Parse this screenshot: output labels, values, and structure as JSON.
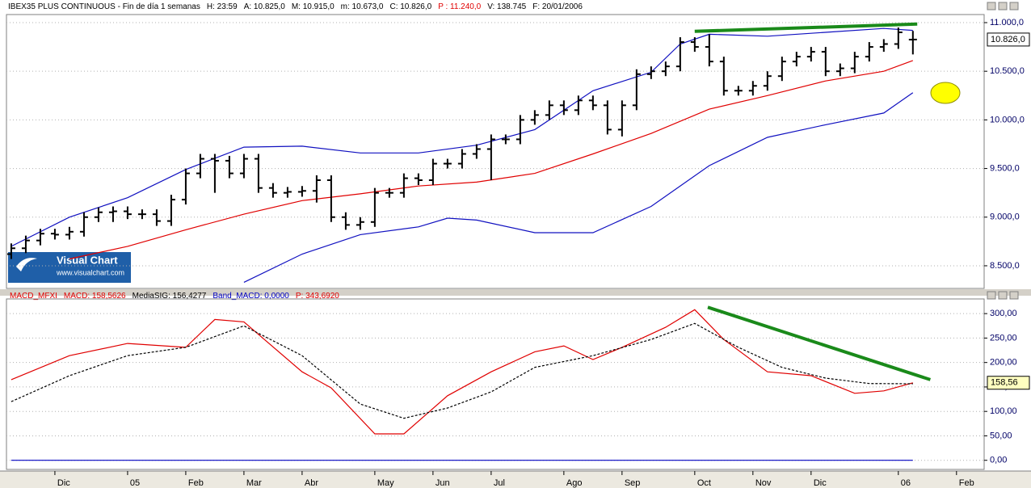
{
  "watermark": {
    "title": "Visual Chart",
    "url": "www.visualchart.com"
  },
  "chart_data": [
    {
      "type": "ohlc",
      "title": "IBEX35 PLUS CONTINUOUS - Fin de día 1 semanas",
      "info": [
        "H: 23:59",
        "A: 10.825,0",
        "M: 10.915,0",
        "m: 10.673,0",
        "C: 10.826,0",
        "P : 11.240,0",
        "V: 138.745",
        "F: 20/01/2006"
      ],
      "categories": [
        null,
        null,
        null,
        "Dic",
        null,
        null,
        null,
        null,
        "05",
        null,
        null,
        null,
        "Feb",
        null,
        null,
        null,
        "Mar",
        null,
        null,
        null,
        "Abr",
        null,
        null,
        null,
        null,
        "May",
        null,
        null,
        null,
        "Jun",
        null,
        null,
        null,
        "Jul",
        null,
        null,
        null,
        null,
        "Ago",
        null,
        null,
        null,
        "Sep",
        null,
        null,
        null,
        null,
        "Oct",
        null,
        null,
        null,
        "Nov",
        null,
        null,
        null,
        "Dic",
        null,
        null,
        null,
        null,
        null,
        "06",
        null,
        null,
        null,
        "Feb"
      ],
      "open": [
        8620,
        8680,
        8760,
        8830,
        8820,
        8850,
        9000,
        9050,
        9060,
        9030,
        9030,
        8960,
        9180,
        9450,
        9600,
        9580,
        9450,
        9600,
        9300,
        9250,
        9260,
        9270,
        9380,
        9000,
        8920,
        8950,
        9250,
        9250,
        9400,
        9380,
        9550,
        9550,
        9650,
        9700,
        9800,
        9800,
        10000,
        10050,
        10150,
        10100,
        10200,
        10150,
        9900,
        10150,
        10470,
        10500,
        10550,
        10800,
        10750,
        10600,
        10300,
        10300,
        10350,
        10450,
        10600,
        10650,
        10700,
        10500,
        10530,
        10650,
        10750,
        10780,
        10825,
        null,
        null,
        null
      ],
      "high": [
        8730,
        8810,
        8880,
        8880,
        8900,
        9050,
        9100,
        9110,
        9110,
        9080,
        9080,
        9230,
        9500,
        9650,
        9650,
        9630,
        9650,
        9650,
        9350,
        9310,
        9320,
        9430,
        9430,
        9050,
        9000,
        9300,
        9300,
        9450,
        9450,
        9600,
        9600,
        9700,
        9750,
        9850,
        9850,
        10050,
        10100,
        10200,
        10200,
        10250,
        10250,
        10200,
        10200,
        10520,
        10550,
        10600,
        10850,
        10850,
        10880,
        10650,
        10350,
        10400,
        10500,
        10650,
        10700,
        10750,
        10750,
        10580,
        10700,
        10800,
        10830,
        10950,
        10915,
        null,
        null,
        null
      ],
      "low": [
        8570,
        8630,
        8710,
        8770,
        8770,
        8800,
        8950,
        8950,
        8980,
        8980,
        8910,
        8910,
        9130,
        9400,
        9250,
        9400,
        9400,
        9250,
        9200,
        9200,
        9210,
        9150,
        8950,
        8870,
        8870,
        8900,
        9200,
        9200,
        9330,
        9330,
        9500,
        9500,
        9600,
        9380,
        9750,
        9750,
        9950,
        10000,
        10050,
        10050,
        10100,
        9850,
        9830,
        10100,
        10420,
        10450,
        10500,
        10700,
        10550,
        10250,
        10250,
        10250,
        10300,
        10400,
        10550,
        10600,
        10450,
        10450,
        10480,
        10600,
        10700,
        10730,
        10673,
        null,
        null,
        null
      ],
      "close": [
        8680,
        8760,
        8830,
        8820,
        8850,
        9000,
        9050,
        9060,
        9030,
        9030,
        8960,
        9180,
        9450,
        9600,
        9580,
        9450,
        9600,
        9300,
        9250,
        9260,
        9270,
        9380,
        9000,
        8920,
        8950,
        9250,
        9250,
        9400,
        9380,
        9550,
        9550,
        9650,
        9700,
        9800,
        9800,
        10000,
        10050,
        10150,
        10100,
        10200,
        10150,
        9900,
        10150,
        10470,
        10500,
        10550,
        10800,
        10750,
        10600,
        10300,
        10300,
        10350,
        10450,
        10600,
        10650,
        10700,
        10500,
        10530,
        10650,
        10750,
        10780,
        10900,
        10826,
        null,
        null,
        null
      ],
      "color": "#000000",
      "bands": [
        {
          "color": "#1010c0",
          "x": [
            0,
            4,
            8,
            12,
            16,
            20,
            24,
            28,
            32,
            36,
            40,
            44,
            46,
            48,
            52,
            56,
            60,
            62
          ],
          "values": [
            8700,
            9000,
            9200,
            9490,
            9720,
            9730,
            9660,
            9660,
            9740,
            9900,
            10300,
            10490,
            10780,
            10880,
            10860,
            10900,
            10940,
            10920
          ]
        },
        {
          "color": "#e00000",
          "x": [
            4,
            8,
            12,
            16,
            20,
            24,
            28,
            32,
            36,
            40,
            44,
            48,
            52,
            56,
            60,
            62
          ],
          "values": [
            8570,
            8700,
            8870,
            9030,
            9170,
            9240,
            9320,
            9360,
            9450,
            9650,
            9860,
            10110,
            10250,
            10400,
            10500,
            10610
          ]
        },
        {
          "color": "#1010c0",
          "x": [
            16,
            20,
            24,
            28,
            30,
            32,
            36,
            40,
            44,
            48,
            52,
            56,
            60,
            62
          ],
          "values": [
            8330,
            8620,
            8820,
            8900,
            8990,
            8970,
            8840,
            8840,
            9110,
            9530,
            9820,
            9950,
            10070,
            10280
          ]
        }
      ],
      "trendline": {
        "color": "#1a8a1a",
        "x": [
          47,
          62.3
        ],
        "values": [
          10910,
          10985
        ]
      },
      "last_value": {
        "value": 10826,
        "label": "10.826,0"
      },
      "xlim": [
        -0.33,
        66.9
      ],
      "ylim": [
        8267,
        11083
      ],
      "yticks": [
        {
          "value": 8500,
          "label": "8.500,0"
        },
        {
          "value": 9000,
          "label": "9.000,0"
        },
        {
          "value": 9500,
          "label": "9.500,0"
        },
        {
          "value": 10000,
          "label": "10.000,0"
        },
        {
          "value": 10500,
          "label": "10.500,0"
        },
        {
          "value": 11000,
          "label": "11.000,0"
        }
      ],
      "grid": true
    },
    {
      "type": "line",
      "title": "MACD_MFXI",
      "info": [
        "MACD: 158,5626",
        "MediaSIG: 156,4277",
        "Band_MACD: 0,0000",
        "P: 343,6920"
      ],
      "series": [
        {
          "color": "#e00000",
          "x": [
            0,
            4,
            8,
            12,
            14,
            16,
            20,
            22,
            25,
            27,
            30,
            33,
            36,
            38,
            40,
            42,
            45,
            47,
            49,
            52,
            55,
            58,
            60,
            62
          ],
          "values": [
            165,
            214,
            239,
            231,
            288,
            283,
            181,
            148,
            54,
            54,
            132,
            181,
            222,
            234,
            206,
            231,
            272,
            308,
            247,
            181,
            173,
            137,
            142,
            158.5626
          ]
        },
        {
          "color": "#000000",
          "dash": true,
          "x": [
            0,
            4,
            8,
            12,
            16,
            20,
            24,
            27,
            30,
            33,
            36,
            40,
            44,
            47,
            50,
            53,
            56,
            59,
            62
          ],
          "values": [
            120,
            173,
            214,
            231,
            275,
            214,
            115,
            86,
            107,
            140,
            190,
            214,
            247,
            280,
            231,
            190,
            168,
            157,
            156.4277
          ]
        },
        {
          "color": "#0000c0",
          "x": [
            0,
            62
          ],
          "values": [
            0,
            0
          ]
        }
      ],
      "trendline": {
        "color": "#1a8a1a",
        "x": [
          47.9,
          63.2
        ],
        "values": [
          313,
          165
        ]
      },
      "last_value": {
        "value": 158.56,
        "label": "158,56"
      },
      "xlim": [
        -0.33,
        66.9
      ],
      "ylim": [
        -17,
        330
      ],
      "yticks": [
        {
          "value": 0,
          "label": "0,00"
        },
        {
          "value": 50,
          "label": "50,00"
        },
        {
          "value": 100,
          "label": "100,00"
        },
        {
          "value": 150,
          "label": "150,00"
        },
        {
          "value": 200,
          "label": "200,00"
        },
        {
          "value": 250,
          "label": "250,00"
        },
        {
          "value": 300,
          "label": "300,00"
        }
      ],
      "grid": true
    }
  ]
}
